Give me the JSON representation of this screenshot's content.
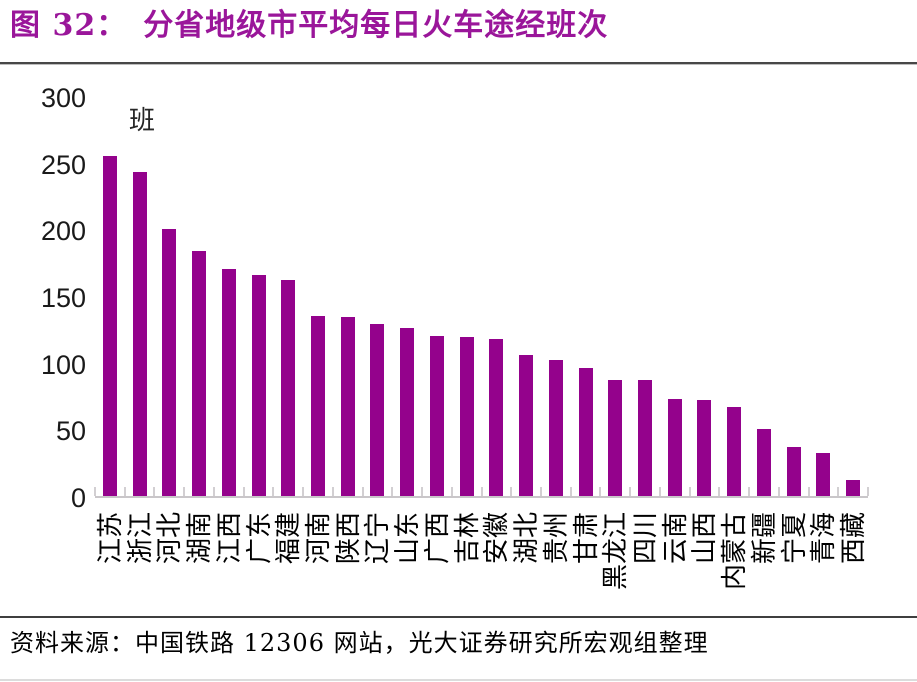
{
  "header": {
    "figure_label": "图 32：",
    "title": "分省地级市平均每日火车途经班次"
  },
  "chart_data": {
    "type": "bar",
    "title": "分省地级市平均每日火车途经班次",
    "unit_label": "班",
    "categories": [
      "江苏",
      "浙江",
      "河北",
      "湖南",
      "江西",
      "广东",
      "福建",
      "河南",
      "陕西",
      "辽宁",
      "山东",
      "广西",
      "吉林",
      "安徽",
      "湖北",
      "贵州",
      "甘肃",
      "黑龙江",
      "四川",
      "云南",
      "山西",
      "内蒙古",
      "新疆",
      "宁夏",
      "青海",
      "西藏"
    ],
    "values": [
      255,
      243,
      200,
      184,
      170,
      166,
      162,
      135,
      134,
      129,
      126,
      120,
      119,
      118,
      106,
      102,
      96,
      87,
      87,
      73,
      72,
      67,
      50,
      37,
      32,
      12
    ],
    "ylim": [
      0,
      300
    ],
    "yticks": [
      300,
      250,
      200,
      150,
      100,
      50,
      0
    ],
    "grid": false,
    "legend": "none",
    "bar_color": "#94028C"
  },
  "footer": {
    "source": "资料来源：中国铁路 12306 网站，光大证券研究所宏观组整理"
  },
  "colors": {
    "accent": "#94028C",
    "title_text": "#9A169A",
    "axis_line": "#C9C6C9",
    "tick_mark": "#D2CFD2",
    "text": "#1A1A1A",
    "divider_dark": "#3F3F3F",
    "divider_light": "#DCDCDC"
  }
}
